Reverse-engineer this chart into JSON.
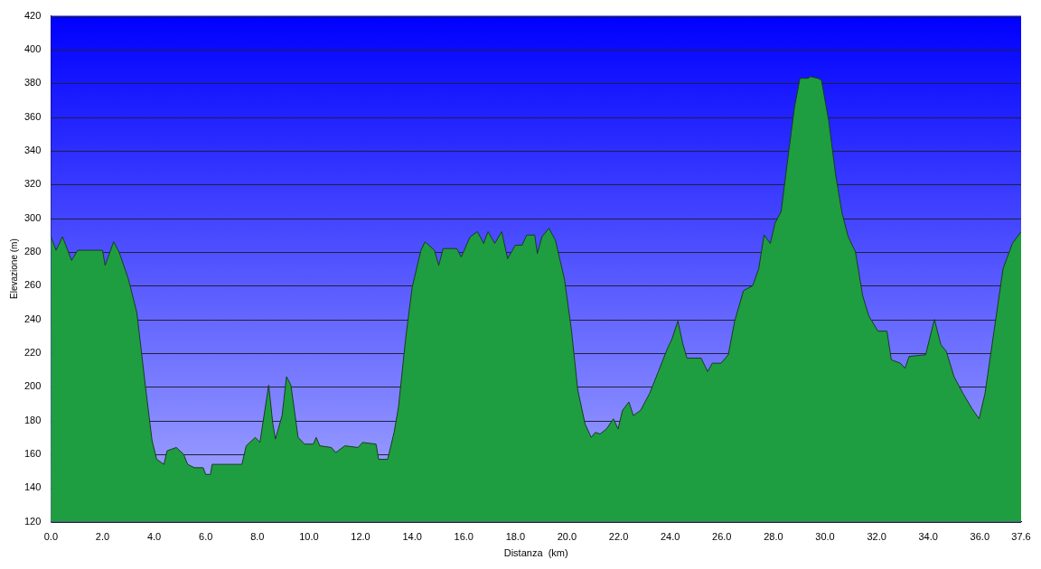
{
  "chart_data": {
    "type": "area",
    "xlabel": "Distanza  (km)",
    "ylabel": "Elevazione (m)",
    "xlim": [
      0,
      37.6
    ],
    "ylim": [
      120,
      420
    ],
    "xticks": [
      {
        "value": 0,
        "label": "0.0"
      },
      {
        "value": 2,
        "label": "2.0"
      },
      {
        "value": 4,
        "label": "4.0"
      },
      {
        "value": 6,
        "label": "6.0"
      },
      {
        "value": 8,
        "label": "8.0"
      },
      {
        "value": 10,
        "label": "10.0"
      },
      {
        "value": 12,
        "label": "12.0"
      },
      {
        "value": 14,
        "label": "14.0"
      },
      {
        "value": 16,
        "label": "16.0"
      },
      {
        "value": 18,
        "label": "18.0"
      },
      {
        "value": 20,
        "label": "20.0"
      },
      {
        "value": 22,
        "label": "22.0"
      },
      {
        "value": 24,
        "label": "24.0"
      },
      {
        "value": 26,
        "label": "26.0"
      },
      {
        "value": 28,
        "label": "28.0"
      },
      {
        "value": 30,
        "label": "30.0"
      },
      {
        "value": 32,
        "label": "32.0"
      },
      {
        "value": 34,
        "label": "34.0"
      },
      {
        "value": 36,
        "label": "36.0"
      },
      {
        "value": 37.6,
        "label": "37.6"
      }
    ],
    "yticks": [
      120,
      140,
      160,
      180,
      200,
      220,
      240,
      260,
      280,
      300,
      320,
      340,
      360,
      380,
      400,
      420
    ],
    "grid": "y",
    "legend": false,
    "series": [
      {
        "color": "#1e9e40",
        "x": [
          0,
          0.2,
          0.45,
          0.8,
          1.04,
          1.3,
          2.0,
          2.1,
          2.43,
          2.64,
          3.0,
          3.33,
          3.68,
          3.92,
          4.1,
          4.38,
          4.5,
          4.86,
          5.14,
          5.3,
          5.56,
          5.9,
          6.0,
          6.18,
          6.25,
          7.4,
          7.57,
          7.92,
          8.1,
          8.26,
          8.44,
          8.6,
          8.7,
          8.96,
          9.13,
          9.3,
          9.58,
          9.83,
          10.17,
          10.28,
          10.42,
          10.87,
          11.04,
          11.39,
          11.9,
          12.08,
          12.6,
          12.7,
          13.05,
          13.3,
          13.47,
          13.75,
          14.0,
          14.34,
          14.5,
          14.86,
          15.03,
          15.2,
          15.73,
          15.9,
          16.25,
          16.53,
          16.77,
          16.94,
          17.2,
          17.47,
          17.7,
          18.0,
          18.26,
          18.44,
          18.75,
          18.85,
          19.03,
          19.3,
          19.55,
          19.9,
          20.17,
          20.42,
          20.7,
          20.94,
          21.1,
          21.28,
          21.53,
          21.8,
          21.98,
          22.15,
          22.4,
          22.57,
          22.85,
          23.2,
          23.54,
          23.9,
          24.06,
          24.3,
          24.48,
          24.65,
          25.2,
          25.45,
          25.63,
          25.97,
          26.25,
          26.5,
          26.84,
          27.2,
          27.43,
          27.64,
          27.88,
          28.06,
          28.3,
          28.58,
          28.82,
          29.03,
          29.34,
          29.44,
          29.72,
          29.86,
          30.14,
          30.42,
          30.66,
          30.9,
          31.18,
          31.46,
          31.7,
          32.05,
          32.4,
          32.57,
          32.92,
          33.1,
          33.26,
          33.9,
          34.24,
          34.49,
          34.7,
          35.0,
          35.35,
          35.7,
          35.97,
          36.2,
          36.56,
          36.9,
          37.26,
          37.6
        ],
        "values": [
          289,
          281,
          289,
          275,
          281,
          281,
          281,
          272,
          286,
          280,
          264,
          244,
          198,
          168,
          157,
          154,
          162,
          164,
          160,
          154,
          152,
          152,
          148,
          148,
          154,
          154,
          165,
          170,
          167,
          183,
          201,
          178,
          169,
          183,
          206,
          201,
          170,
          166,
          166,
          170,
          165,
          164,
          161,
          165,
          164,
          167,
          166,
          157,
          157,
          173,
          188,
          229,
          259,
          281,
          286,
          281,
          272,
          282,
          282,
          277,
          289,
          292,
          285,
          292,
          285,
          292,
          276,
          284,
          284,
          290,
          290,
          279,
          289,
          294,
          287,
          264,
          234,
          198,
          178,
          170,
          173,
          172,
          175,
          181,
          175,
          186,
          191,
          183,
          186,
          196,
          209,
          223,
          228,
          239,
          226,
          217,
          217,
          209,
          214,
          214,
          219,
          239,
          257,
          260,
          270,
          290,
          285,
          297,
          304,
          338,
          366,
          383,
          383,
          384,
          383,
          382,
          358,
          325,
          303,
          289,
          280,
          254,
          242,
          233,
          233,
          216,
          214,
          211,
          218,
          219,
          240,
          225,
          221,
          206,
          196,
          187,
          181,
          196,
          234,
          270,
          285,
          292
        ]
      }
    ]
  }
}
